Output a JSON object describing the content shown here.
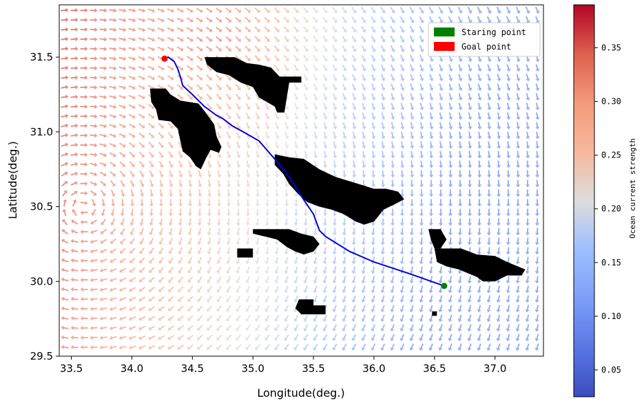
{
  "chart_data": {
    "type": "vector-field-map",
    "xlabel": "Longitude(deg.)",
    "ylabel": "Latitude(deg.)",
    "xlim": [
      33.4,
      37.4
    ],
    "ylim": [
      29.5,
      31.85
    ],
    "xticks": [
      33.5,
      34.0,
      34.5,
      35.0,
      35.5,
      36.0,
      36.5,
      37.0
    ],
    "xtick_labels": [
      "33.5",
      "34.0",
      "34.5",
      "35.0",
      "35.5",
      "36.0",
      "36.5",
      "37.0"
    ],
    "yticks": [
      29.5,
      30.0,
      30.5,
      31.0,
      31.5
    ],
    "ytick_labels": [
      "29.5",
      "30.0",
      "30.5",
      "31.0",
      "31.5"
    ],
    "legend": {
      "position": "top-right",
      "entries": [
        {
          "label": "Staring point",
          "color": "#008000"
        },
        {
          "label": "Goal point",
          "color": "#ff0000"
        }
      ]
    },
    "colorbar": {
      "label": "Ocean current strength",
      "min": 0.025,
      "max": 0.39,
      "ticks": [
        0.05,
        0.1,
        0.15,
        0.2,
        0.25,
        0.3,
        0.35
      ],
      "tick_labels": [
        "0.05",
        "0.10",
        "0.15",
        "0.20",
        "0.25",
        "0.30",
        "0.35"
      ],
      "colormap": "coolwarm"
    },
    "start_point": {
      "lon": 36.58,
      "lat": 29.97,
      "color": "#008000"
    },
    "goal_point": {
      "lon": 34.27,
      "lat": 31.49,
      "color": "#ff0000"
    },
    "path": {
      "color": "#0000dd",
      "points": [
        [
          36.58,
          29.97
        ],
        [
          36.3,
          30.05
        ],
        [
          36.0,
          30.13
        ],
        [
          35.8,
          30.2
        ],
        [
          35.6,
          30.3
        ],
        [
          35.55,
          30.34
        ],
        [
          35.5,
          30.45
        ],
        [
          35.4,
          30.57
        ],
        [
          35.3,
          30.7
        ],
        [
          35.2,
          30.8
        ],
        [
          35.05,
          30.94
        ],
        [
          34.92,
          31.0
        ],
        [
          34.83,
          31.04
        ],
        [
          34.75,
          31.09
        ],
        [
          34.7,
          31.11
        ],
        [
          34.6,
          31.17
        ],
        [
          34.5,
          31.25
        ],
        [
          34.42,
          31.31
        ],
        [
          34.4,
          31.37
        ],
        [
          34.38,
          31.42
        ],
        [
          34.35,
          31.47
        ],
        [
          34.3,
          31.5
        ],
        [
          34.27,
          31.49
        ]
      ]
    },
    "vortex_center": {
      "lon": 33.6,
      "lat": 30.5
    },
    "obstacles": [
      {
        "name": "island-1",
        "polygon": [
          [
            34.15,
            31.29
          ],
          [
            34.28,
            31.29
          ],
          [
            34.32,
            31.25
          ],
          [
            34.4,
            31.21
          ],
          [
            34.55,
            31.19
          ],
          [
            34.6,
            31.14
          ],
          [
            34.68,
            31.05
          ],
          [
            34.7,
            30.97
          ],
          [
            34.74,
            30.9
          ],
          [
            34.72,
            30.86
          ],
          [
            34.65,
            30.88
          ],
          [
            34.61,
            30.82
          ],
          [
            34.57,
            30.75
          ],
          [
            34.53,
            30.77
          ],
          [
            34.48,
            30.83
          ],
          [
            34.42,
            30.87
          ],
          [
            34.4,
            30.94
          ],
          [
            34.38,
            31.02
          ],
          [
            34.32,
            31.07
          ],
          [
            34.22,
            31.08
          ],
          [
            34.2,
            31.15
          ],
          [
            34.16,
            31.2
          ]
        ]
      },
      {
        "name": "island-2",
        "polygon": [
          [
            34.6,
            31.5
          ],
          [
            34.85,
            31.5
          ],
          [
            34.95,
            31.46
          ],
          [
            35.05,
            31.45
          ],
          [
            35.15,
            31.43
          ],
          [
            35.22,
            31.37
          ],
          [
            35.4,
            31.37
          ],
          [
            35.4,
            31.33
          ],
          [
            35.3,
            31.33
          ],
          [
            35.28,
            31.23
          ],
          [
            35.26,
            31.13
          ],
          [
            35.2,
            31.13
          ],
          [
            35.18,
            31.17
          ],
          [
            35.05,
            31.23
          ],
          [
            35.0,
            31.3
          ],
          [
            34.9,
            31.33
          ],
          [
            34.8,
            31.38
          ],
          [
            34.7,
            31.4
          ],
          [
            34.62,
            31.45
          ]
        ]
      },
      {
        "name": "island-3",
        "polygon": [
          [
            35.18,
            30.85
          ],
          [
            35.3,
            30.83
          ],
          [
            35.42,
            30.82
          ],
          [
            35.55,
            30.75
          ],
          [
            35.68,
            30.7
          ],
          [
            35.8,
            30.67
          ],
          [
            36.0,
            30.62
          ],
          [
            36.1,
            30.62
          ],
          [
            36.2,
            30.6
          ],
          [
            36.25,
            30.55
          ],
          [
            36.18,
            30.52
          ],
          [
            36.08,
            30.48
          ],
          [
            36.0,
            30.4
          ],
          [
            35.92,
            30.38
          ],
          [
            35.85,
            30.4
          ],
          [
            35.75,
            30.45
          ],
          [
            35.65,
            30.48
          ],
          [
            35.55,
            30.5
          ],
          [
            35.45,
            30.53
          ],
          [
            35.38,
            30.58
          ],
          [
            35.3,
            30.65
          ],
          [
            35.25,
            30.72
          ],
          [
            35.18,
            30.78
          ]
        ]
      },
      {
        "name": "island-4",
        "polygon": [
          [
            35.0,
            30.35
          ],
          [
            35.3,
            30.35
          ],
          [
            35.4,
            30.32
          ],
          [
            35.5,
            30.3
          ],
          [
            35.55,
            30.25
          ],
          [
            35.5,
            30.2
          ],
          [
            35.42,
            30.18
          ],
          [
            35.35,
            30.2
          ],
          [
            35.28,
            30.23
          ],
          [
            35.2,
            30.28
          ],
          [
            35.1,
            30.3
          ],
          [
            35.0,
            30.32
          ]
        ]
      },
      {
        "name": "island-5",
        "polygon": [
          [
            34.87,
            30.22
          ],
          [
            35.0,
            30.22
          ],
          [
            35.0,
            30.16
          ],
          [
            34.87,
            30.16
          ]
        ]
      },
      {
        "name": "island-6",
        "polygon": [
          [
            36.45,
            30.35
          ],
          [
            36.55,
            30.35
          ],
          [
            36.6,
            30.28
          ],
          [
            36.55,
            30.22
          ],
          [
            36.5,
            30.22
          ],
          [
            36.47,
            30.28
          ]
        ]
      },
      {
        "name": "island-7",
        "polygon": [
          [
            36.5,
            30.22
          ],
          [
            36.72,
            30.22
          ],
          [
            36.85,
            30.18
          ],
          [
            37.0,
            30.17
          ],
          [
            37.1,
            30.13
          ],
          [
            37.25,
            30.08
          ],
          [
            37.22,
            30.04
          ],
          [
            37.1,
            30.04
          ],
          [
            37.0,
            30.0
          ],
          [
            36.9,
            30.0
          ],
          [
            36.85,
            30.03
          ],
          [
            36.7,
            30.08
          ],
          [
            36.6,
            30.1
          ],
          [
            36.52,
            30.13
          ]
        ]
      },
      {
        "name": "island-8",
        "polygon": [
          [
            35.38,
            29.88
          ],
          [
            35.5,
            29.88
          ],
          [
            35.5,
            29.84
          ],
          [
            35.6,
            29.84
          ],
          [
            35.6,
            29.78
          ],
          [
            35.4,
            29.78
          ],
          [
            35.35,
            29.82
          ]
        ]
      },
      {
        "name": "island-9",
        "polygon": [
          [
            36.48,
            29.8
          ],
          [
            36.52,
            29.8
          ],
          [
            36.52,
            29.77
          ],
          [
            36.48,
            29.77
          ]
        ]
      }
    ]
  }
}
